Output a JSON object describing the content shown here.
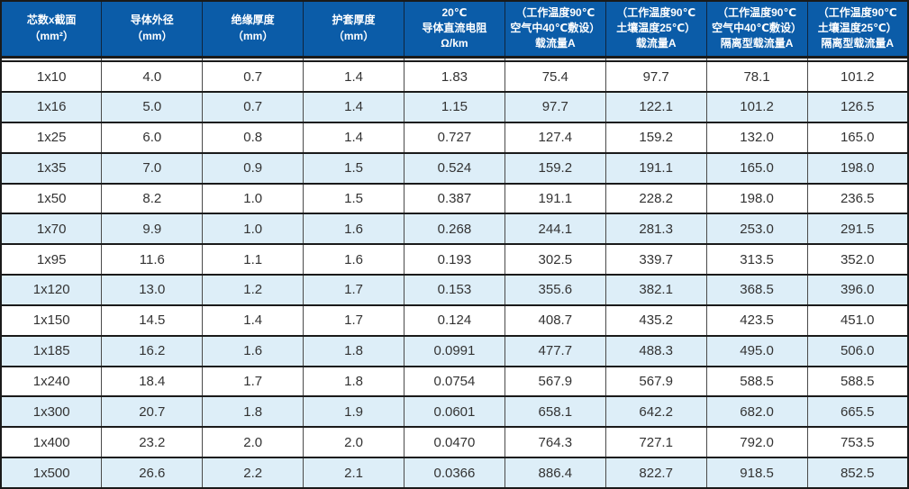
{
  "table": {
    "colors": {
      "header_bg": "#0b5ca8",
      "header_text": "#ffffff",
      "stripe_bg": "#ddeef8",
      "row_bg": "#ffffff",
      "border_dark": "#1a1a1a",
      "grid_line": "#4a4a4a",
      "cell_text": "#333333"
    },
    "headers": [
      {
        "lines": [
          "芯数x截面",
          "（mm²）"
        ]
      },
      {
        "lines": [
          "导体外径",
          "（mm）"
        ]
      },
      {
        "lines": [
          "绝缘厚度",
          "（mm）"
        ]
      },
      {
        "lines": [
          "护套厚度",
          "（mm）"
        ]
      },
      {
        "lines": [
          "20℃",
          "导体直流电阻",
          "Ω/km"
        ]
      },
      {
        "lines": [
          "（工作温度90℃",
          "空气中40℃敷设）",
          "载流量A"
        ]
      },
      {
        "lines": [
          "（工作温度90℃",
          "土壤温度25℃）",
          "载流量A"
        ]
      },
      {
        "lines": [
          "（工作温度90℃",
          "空气中40℃敷设）",
          "隔离型载流量A"
        ]
      },
      {
        "lines": [
          "（工作温度90℃",
          "土壤温度25℃）",
          "隔离型载流量A"
        ]
      }
    ],
    "rows": [
      [
        "1x10",
        "4.0",
        "0.7",
        "1.4",
        "1.83",
        "75.4",
        "97.7",
        "78.1",
        "101.2"
      ],
      [
        "1x16",
        "5.0",
        "0.7",
        "1.4",
        "1.15",
        "97.7",
        "122.1",
        "101.2",
        "126.5"
      ],
      [
        "1x25",
        "6.0",
        "0.8",
        "1.4",
        "0.727",
        "127.4",
        "159.2",
        "132.0",
        "165.0"
      ],
      [
        "1x35",
        "7.0",
        "0.9",
        "1.5",
        "0.524",
        "159.2",
        "191.1",
        "165.0",
        "198.0"
      ],
      [
        "1x50",
        "8.2",
        "1.0",
        "1.5",
        "0.387",
        "191.1",
        "228.2",
        "198.0",
        "236.5"
      ],
      [
        "1x70",
        "9.9",
        "1.0",
        "1.6",
        "0.268",
        "244.1",
        "281.3",
        "253.0",
        "291.5"
      ],
      [
        "1x95",
        "11.6",
        "1.1",
        "1.6",
        "0.193",
        "302.5",
        "339.7",
        "313.5",
        "352.0"
      ],
      [
        "1x120",
        "13.0",
        "1.2",
        "1.7",
        "0.153",
        "355.6",
        "382.1",
        "368.5",
        "396.0"
      ],
      [
        "1x150",
        "14.5",
        "1.4",
        "1.7",
        "0.124",
        "408.7",
        "435.2",
        "423.5",
        "451.0"
      ],
      [
        "1x185",
        "16.2",
        "1.6",
        "1.8",
        "0.0991",
        "477.7",
        "488.3",
        "495.0",
        "506.0"
      ],
      [
        "1x240",
        "18.4",
        "1.7",
        "1.8",
        "0.0754",
        "567.9",
        "567.9",
        "588.5",
        "588.5"
      ],
      [
        "1x300",
        "20.7",
        "1.8",
        "1.9",
        "0.0601",
        "658.1",
        "642.2",
        "682.0",
        "665.5"
      ],
      [
        "1x400",
        "23.2",
        "2.0",
        "2.0",
        "0.0470",
        "764.3",
        "727.1",
        "792.0",
        "753.5"
      ],
      [
        "1x500",
        "26.6",
        "2.2",
        "2.1",
        "0.0366",
        "886.4",
        "822.7",
        "918.5",
        "852.5"
      ]
    ]
  }
}
